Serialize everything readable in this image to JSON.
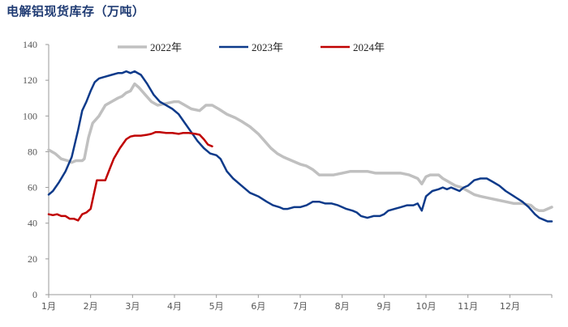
{
  "title": "电解铝现货库存（万吨）",
  "chart_data": {
    "type": "line",
    "title": "电解铝现货库存（万吨）",
    "xlabel": "",
    "ylabel": "",
    "x_ticks": [
      "1月",
      "2月",
      "3月",
      "4月",
      "5月",
      "6月",
      "7月",
      "8月",
      "9月",
      "10月",
      "11月",
      "12月"
    ],
    "xlim": [
      1,
      13
    ],
    "ylim": [
      0,
      140
    ],
    "y_ticks": [
      0,
      20,
      40,
      60,
      80,
      100,
      120,
      140
    ],
    "grid": false,
    "legend_position": "top",
    "series": [
      {
        "name": "2022年",
        "color": "#c0c0c0",
        "x": [
          1.0,
          1.15,
          1.3,
          1.45,
          1.55,
          1.65,
          1.8,
          1.85,
          1.95,
          2.05,
          2.2,
          2.35,
          2.5,
          2.65,
          2.75,
          2.85,
          2.95,
          3.05,
          3.15,
          3.3,
          3.45,
          3.6,
          3.8,
          4.0,
          4.1,
          4.25,
          4.4,
          4.6,
          4.75,
          4.9,
          5.05,
          5.25,
          5.45,
          5.6,
          5.8,
          6.0,
          6.15,
          6.3,
          6.45,
          6.6,
          6.8,
          7.0,
          7.15,
          7.3,
          7.45,
          7.6,
          7.8,
          8.0,
          8.2,
          8.4,
          8.6,
          8.8,
          9.0,
          9.2,
          9.4,
          9.6,
          9.8,
          9.9,
          10.0,
          10.1,
          10.2,
          10.3,
          10.4,
          10.55,
          10.7,
          10.85,
          11.0,
          11.15,
          11.3,
          11.5,
          11.7,
          11.9,
          12.1,
          12.3,
          12.5,
          12.6,
          12.7,
          12.8,
          12.9,
          13.0
        ],
        "values": [
          81,
          79,
          76,
          75,
          74,
          75,
          75,
          76,
          88,
          96,
          100,
          106,
          108,
          110,
          111,
          113,
          114,
          118,
          116,
          112,
          108,
          106,
          107,
          108,
          108,
          106,
          104,
          103,
          106,
          106,
          104,
          101,
          99,
          97,
          94,
          90,
          86,
          82,
          79,
          77,
          75,
          73,
          72,
          70,
          67,
          67,
          67,
          68,
          69,
          69,
          69,
          68,
          68,
          68,
          68,
          67,
          65,
          62,
          66,
          67,
          67,
          67,
          65,
          63,
          61,
          60,
          58,
          56,
          55,
          54,
          53,
          52,
          51,
          51,
          50,
          48,
          47,
          47,
          48,
          49
        ]
      },
      {
        "name": "2023年",
        "color": "#0d3a8a",
        "x": [
          1.0,
          1.1,
          1.25,
          1.4,
          1.55,
          1.7,
          1.8,
          1.9,
          2.0,
          2.1,
          2.2,
          2.35,
          2.5,
          2.65,
          2.75,
          2.85,
          2.95,
          3.05,
          3.2,
          3.35,
          3.5,
          3.65,
          3.8,
          3.95,
          4.1,
          4.25,
          4.4,
          4.55,
          4.7,
          4.85,
          5.0,
          5.1,
          5.25,
          5.4,
          5.6,
          5.8,
          6.0,
          6.2,
          6.35,
          6.5,
          6.6,
          6.7,
          6.85,
          7.0,
          7.15,
          7.3,
          7.45,
          7.6,
          7.75,
          7.9,
          8.0,
          8.1,
          8.25,
          8.35,
          8.45,
          8.6,
          8.75,
          8.9,
          9.0,
          9.1,
          9.25,
          9.4,
          9.55,
          9.7,
          9.8,
          9.9,
          10.0,
          10.15,
          10.3,
          10.4,
          10.5,
          10.6,
          10.7,
          10.8,
          10.9,
          11.0,
          11.15,
          11.3,
          11.45,
          11.6,
          11.75,
          11.9,
          12.1,
          12.3,
          12.45,
          12.6,
          12.7,
          12.8,
          12.9,
          13.0
        ],
        "values": [
          56,
          58,
          63,
          69,
          77,
          92,
          103,
          108,
          114,
          119,
          121,
          122,
          123,
          124,
          124,
          125,
          124,
          125,
          123,
          118,
          112,
          108,
          106,
          104,
          101,
          96,
          91,
          86,
          82,
          79,
          78,
          76,
          69,
          65,
          61,
          57,
          55,
          52,
          50,
          49,
          48,
          48,
          49,
          49,
          50,
          52,
          52,
          51,
          51,
          50,
          49,
          48,
          47,
          46,
          44,
          43,
          44,
          44,
          45,
          47,
          48,
          49,
          50,
          50,
          51,
          47,
          55,
          58,
          59,
          60,
          59,
          60,
          59,
          58,
          60,
          61,
          64,
          65,
          65,
          63,
          61,
          58,
          55,
          52,
          49,
          45,
          43,
          42,
          41,
          41
        ]
      },
      {
        "name": "2024年",
        "color": "#c00000",
        "x": [
          1.0,
          1.1,
          1.2,
          1.3,
          1.4,
          1.5,
          1.6,
          1.7,
          1.8,
          1.9,
          2.0,
          2.15,
          2.25,
          2.35,
          2.45,
          2.55,
          2.7,
          2.85,
          2.95,
          3.05,
          3.2,
          3.35,
          3.45,
          3.55,
          3.65,
          3.8,
          3.95,
          4.1,
          4.2,
          4.35,
          4.5,
          4.6,
          4.7,
          4.8,
          4.9
        ],
        "values": [
          45,
          44.5,
          45,
          44,
          44,
          42.5,
          42.5,
          41.5,
          45,
          46,
          48,
          64,
          64,
          64,
          70,
          76,
          82,
          87,
          88.5,
          89,
          89,
          89.5,
          90,
          91,
          91,
          90.5,
          90.5,
          90,
          90.5,
          90.5,
          90,
          89.5,
          87,
          84,
          83
        ]
      }
    ]
  }
}
